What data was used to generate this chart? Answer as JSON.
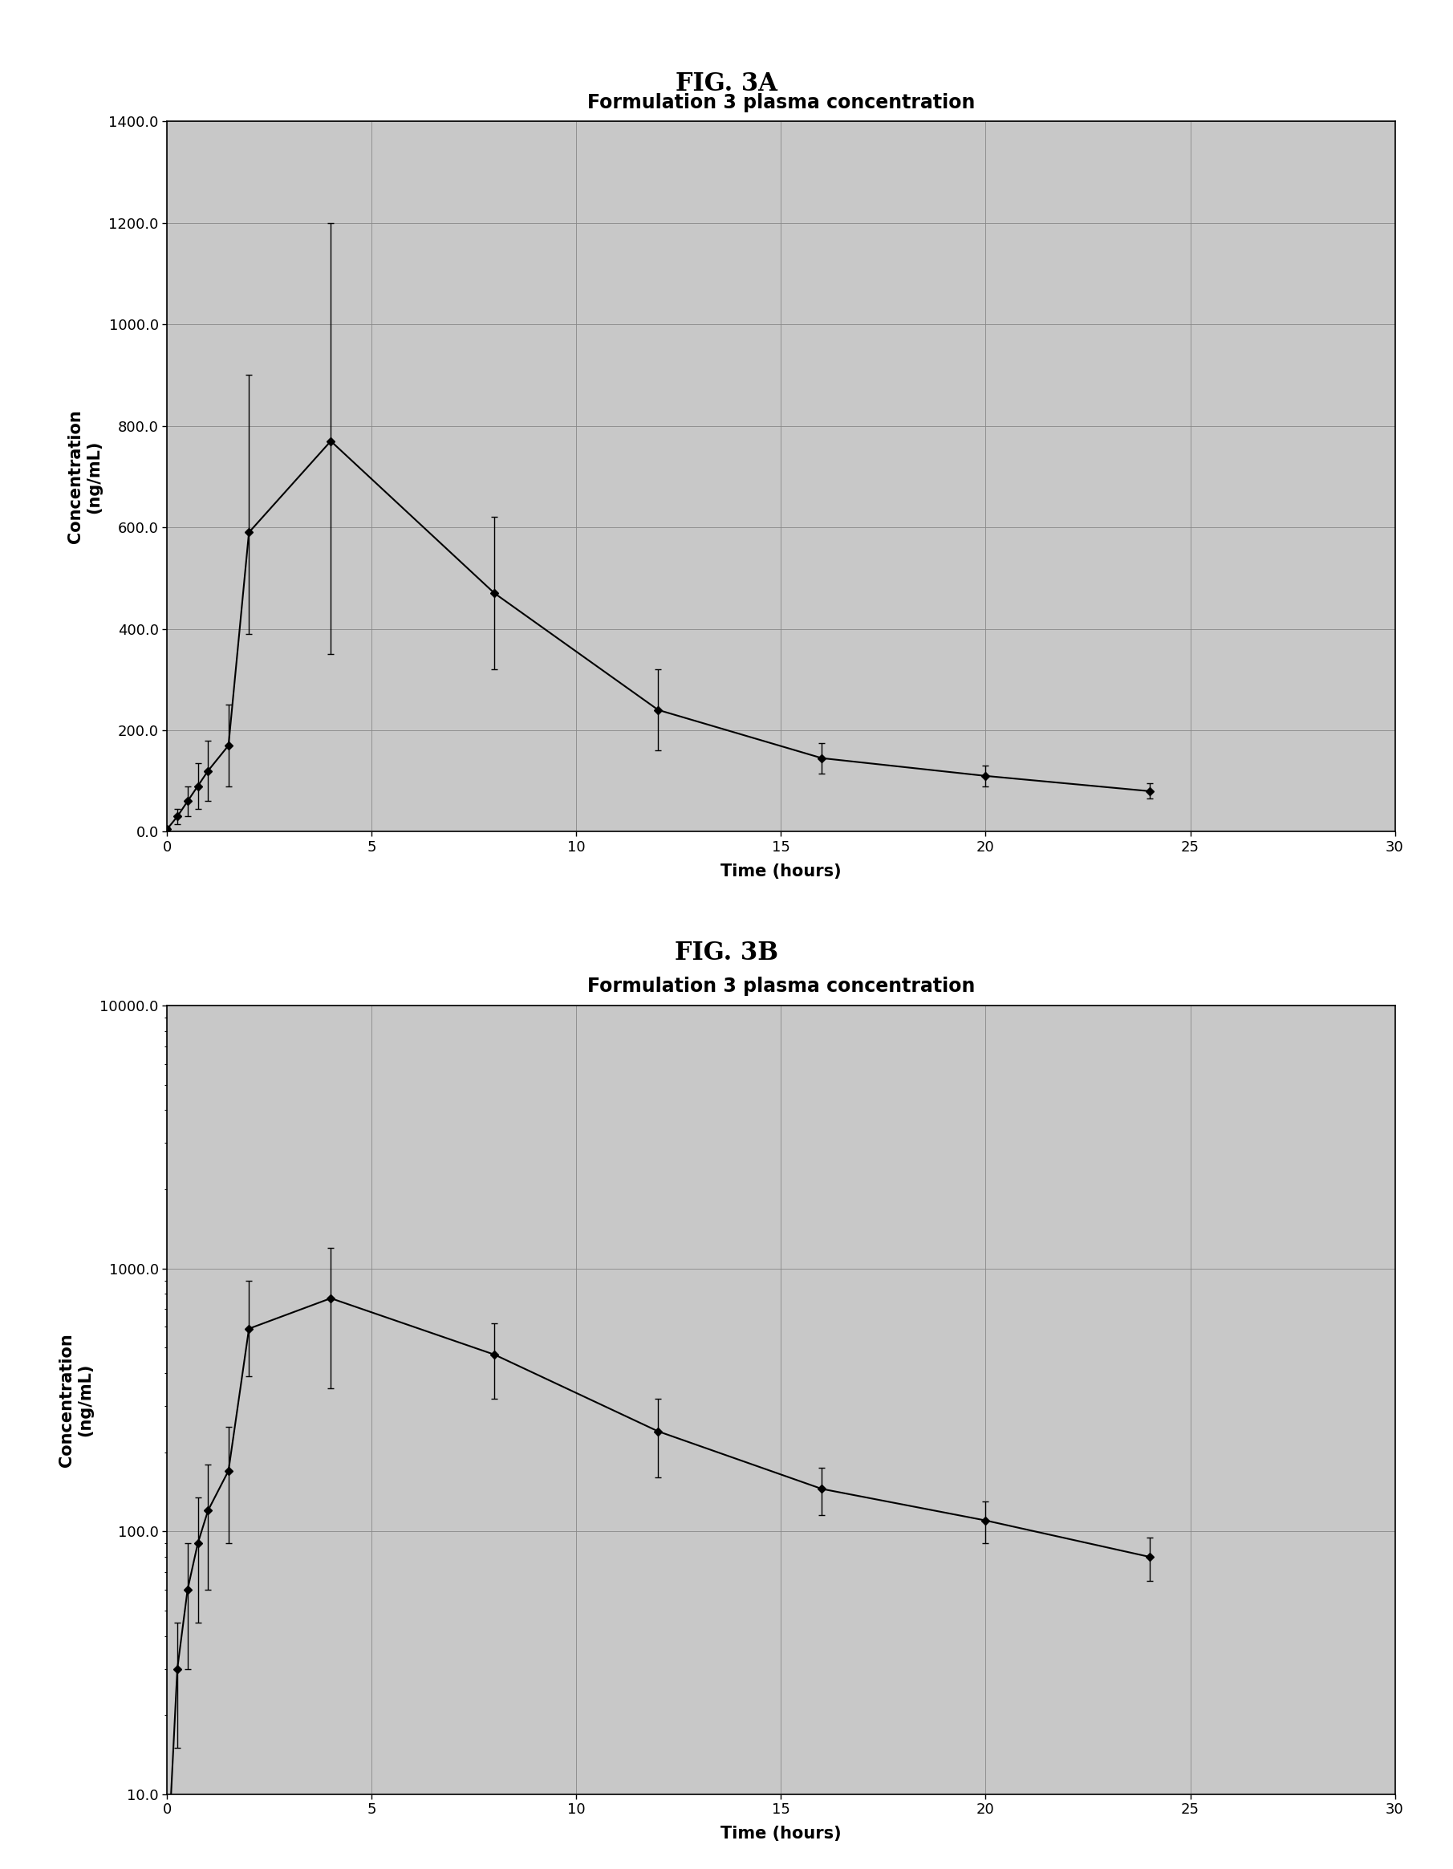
{
  "title_A": "FIG. 3A",
  "title_B": "FIG. 3B",
  "chart_title": "Formulation 3 plasma concentration",
  "xlabel": "Time (hours)",
  "ylabel_A": "Concentration\n(ng/mL)",
  "ylabel_B": "Concentration\n(ng/mL)",
  "x_data": [
    0.0,
    0.25,
    0.5,
    0.75,
    1.0,
    1.5,
    2.0,
    4.0,
    8.0,
    12.0,
    16.0,
    20.0,
    24.0
  ],
  "y_mean": [
    5,
    30,
    60,
    90,
    120,
    170,
    590,
    770,
    470,
    240,
    145,
    110,
    80
  ],
  "y_err_low": [
    3,
    15,
    30,
    45,
    60,
    80,
    200,
    420,
    150,
    80,
    30,
    20,
    15
  ],
  "y_err_high": [
    3,
    15,
    30,
    45,
    60,
    80,
    310,
    430,
    150,
    80,
    30,
    20,
    15
  ],
  "xlim": [
    0,
    30
  ],
  "xlim_ticks": [
    0,
    5,
    10,
    15,
    20,
    25,
    30
  ],
  "ylim_A": [
    0,
    1400
  ],
  "yticks_A": [
    0.0,
    200.0,
    400.0,
    600.0,
    800.0,
    1000.0,
    1200.0,
    1400.0
  ],
  "ylim_B_log": [
    10.0,
    10000.0
  ],
  "yticks_B_log": [
    10.0,
    100.0,
    1000.0,
    10000.0
  ],
  "ytick_labels_B": [
    "10.0",
    "100.0",
    "1000.0",
    "10000.0"
  ],
  "bg_color": "#c8c8c8",
  "stipple_color": "#b0b0b0",
  "line_color": "#000000",
  "marker": "D",
  "marker_size": 5,
  "line_width": 1.5,
  "fig_bg": "#ffffff",
  "box_color": "#000000",
  "title_fontsize": 22,
  "chart_title_fontsize": 17,
  "axis_label_fontsize": 15,
  "tick_fontsize": 13
}
